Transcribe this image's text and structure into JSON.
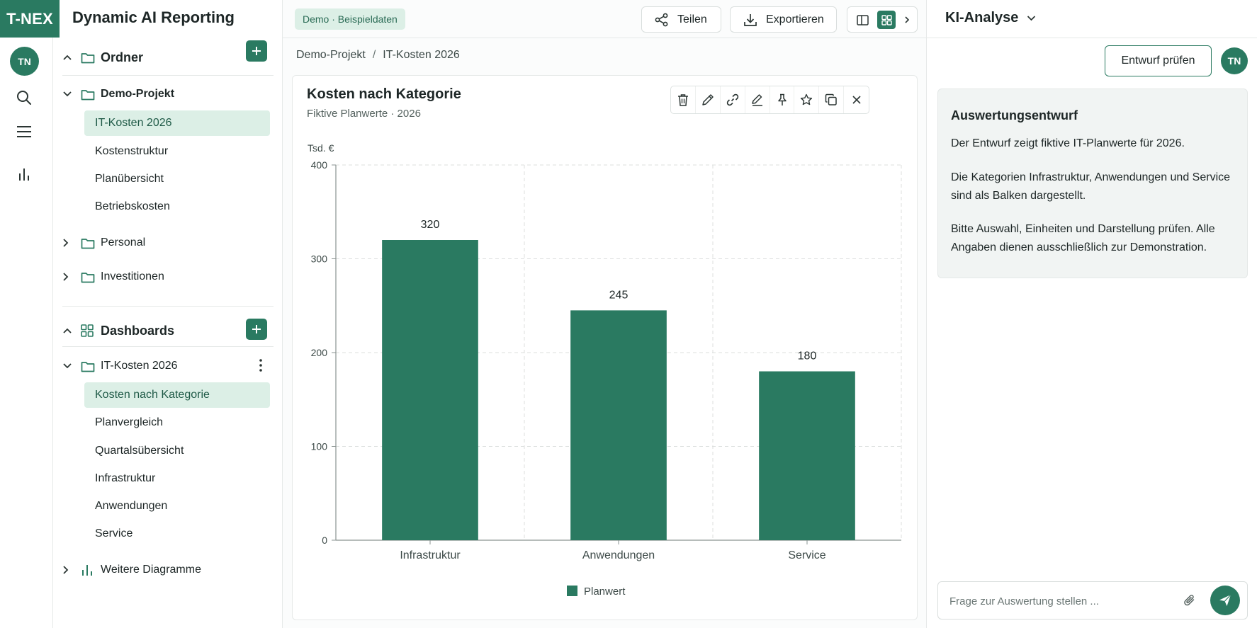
{
  "brand": {
    "logo": "T-NEX",
    "app_title": "Dynamic AI Reporting",
    "user_initials": "TN",
    "accent_color": "#2a7a61"
  },
  "rail": {
    "icons": [
      "search-icon",
      "menu-icon",
      "bar-chart-icon"
    ]
  },
  "sidebar": {
    "folders_header": "Ordner",
    "folders": [
      {
        "label": "Demo-Projekt",
        "expanded": true,
        "items": [
          "IT-Kosten 2026",
          "Kostenstruktur",
          "Planübersicht",
          "Betriebskosten"
        ],
        "active": "IT-Kosten 2026"
      },
      {
        "label": "Personal",
        "expanded": false
      },
      {
        "label": "Investitionen",
        "expanded": false
      }
    ],
    "dashboards_header": "Dashboards",
    "dashboards": [
      {
        "label": "IT-Kosten 2026",
        "expanded": true,
        "items": [
          "Kosten nach Kategorie",
          "Planvergleich",
          "Quartalsübersicht",
          "Infrastruktur",
          "Anwendungen",
          "Service"
        ],
        "active": "Kosten nach Kategorie"
      },
      {
        "label": "Weitere Diagramme",
        "expanded": false
      }
    ]
  },
  "topbar": {
    "badge": "Demo · Beispieldaten",
    "share_label": "Teilen",
    "export_label": "Exportieren"
  },
  "breadcrumb": [
    "Demo-Projekt",
    "IT-Kosten 2026"
  ],
  "card": {
    "title": "Kosten nach Kategorie",
    "subtitle": "Fiktive Planwerte · 2026",
    "toolbar_icons": [
      "delete-icon",
      "edit-icon",
      "link-icon",
      "annotate-icon",
      "pin-icon",
      "favorite-icon",
      "duplicate-icon",
      "close-icon"
    ]
  },
  "chart_data": {
    "type": "bar",
    "categories": [
      "Infrastruktur",
      "Anwendungen",
      "Service"
    ],
    "series": [
      {
        "name": "Planwert",
        "values": [
          320,
          245,
          180
        ],
        "color": "#2a7a61"
      }
    ],
    "ylabel": "Tsd. €",
    "ylim": [
      0,
      400
    ],
    "yticks": [
      0,
      100,
      200,
      300,
      400
    ],
    "grid": true,
    "legend": "bottom-center",
    "data_labels": true
  },
  "right_panel": {
    "title": "KI-Analyse",
    "review_button": "Entwurf prüfen",
    "analysis": {
      "title": "Auswertungsentwurf",
      "paragraphs": [
        "Der Entwurf zeigt fiktive IT-Planwerte für 2026.",
        "Die Kategorien Infrastruktur, Anwendungen und Service sind als Balken dargestellt.",
        "Bitte Auswahl, Einheiten und Darstellung prüfen. Alle Angaben dienen ausschließlich zur Demonstration."
      ]
    },
    "chat_placeholder": "Frage zur Auswertung stellen ..."
  }
}
